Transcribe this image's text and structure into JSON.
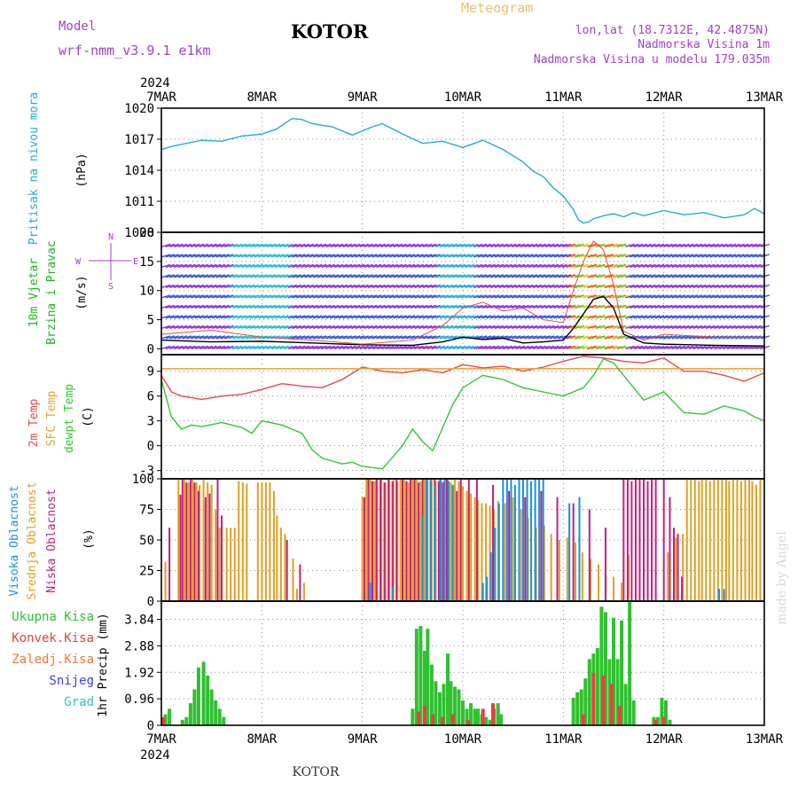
{
  "header": {
    "model_label": "Model",
    "model_name": "wrf-nmm_v3.9.1 e1km",
    "station": "KOTOR",
    "meteogram_label": "Meteogram",
    "lonlat": "lon,lat (18.7312E, 42.4875N)",
    "altitude": "Nadmorska Visina 1m",
    "model_altitude": "Nadmorska Visina u modelu 179.035m",
    "watermark": "made by Angel",
    "year_top": "2024",
    "year_bottom": "2024",
    "footer_station": "KOTOR"
  },
  "colors": {
    "pressure": "#22a8e6",
    "model": "#a040d0",
    "wind_label": "#22b022",
    "temp": "#e84848",
    "sfc": "#e8a030",
    "dewpt": "#30c830",
    "cloud_high": "#1890e0",
    "cloud_mid": "#e0a020",
    "cloud_low": "#c02080",
    "precip_total": "#30c030",
    "precip_conv": "#e84040",
    "precip_frozen": "#f07830",
    "precip_snow": "#4040e0",
    "precip_hail": "#30c0c0",
    "meteogram_title": "#e8c070",
    "header_right": "#a040d0"
  },
  "chart_data": [
    {
      "type": "line",
      "panel": "pressure",
      "ylabel_colored": "Pritisak na nivou mora",
      "unit": "(hPa)",
      "xlim_days": [
        "7MAR",
        "13MAR"
      ],
      "x_ticks": [
        "7MAR",
        "8MAR",
        "9MAR",
        "10MAR",
        "11MAR",
        "12MAR",
        "13MAR"
      ],
      "y_ticks": [
        "1020",
        "1017",
        "1014",
        "1011",
        "1008"
      ],
      "ylim": [
        1008,
        1020
      ],
      "grid": true,
      "series": [
        {
          "color": "pressure",
          "x": [
            0.0,
            0.1,
            0.2,
            0.4,
            0.6,
            0.8,
            1.0,
            1.15,
            1.3,
            1.4,
            1.5,
            1.7,
            1.9,
            2.1,
            2.2,
            2.4,
            2.6,
            2.8,
            3.0,
            3.2,
            3.4,
            3.6,
            3.7,
            3.8,
            3.9,
            4.0,
            4.1,
            4.15,
            4.2,
            4.25,
            4.3,
            4.4,
            4.5,
            4.6,
            4.7,
            4.8,
            5.0,
            5.2,
            5.4,
            5.6,
            5.8,
            5.9,
            6.0
          ],
          "y": [
            1016.0,
            1016.3,
            1016.5,
            1016.9,
            1016.8,
            1017.3,
            1017.5,
            1018.0,
            1019.0,
            1018.9,
            1018.5,
            1018.2,
            1017.4,
            1018.2,
            1018.5,
            1017.5,
            1016.6,
            1016.8,
            1016.2,
            1016.9,
            1016.0,
            1014.8,
            1013.9,
            1013.4,
            1012.3,
            1011.5,
            1010.2,
            1009.2,
            1008.9,
            1009.0,
            1009.3,
            1009.6,
            1009.8,
            1009.5,
            1009.9,
            1009.6,
            1010.1,
            1009.7,
            1009.9,
            1009.4,
            1009.7,
            1010.3,
            1009.8
          ]
        }
      ]
    },
    {
      "type": "line",
      "panel": "wind",
      "ylabel_colored": [
        "10m Vjetar",
        "Brzina i Pravac"
      ],
      "unit": "(m/s)",
      "compass_labels": [
        "N",
        "W",
        "E",
        "S"
      ],
      "y_ticks": [
        "20",
        "15",
        "10",
        "5",
        "0"
      ],
      "ylim": [
        -1,
        20
      ],
      "series": [
        {
          "name": "wind speed",
          "color": "#000000",
          "x": [
            0.0,
            0.5,
            1.0,
            1.5,
            2.0,
            2.5,
            2.8,
            3.0,
            3.2,
            3.4,
            3.6,
            3.8,
            4.0,
            4.1,
            4.2,
            4.3,
            4.4,
            4.5,
            4.6,
            4.8,
            5.0,
            5.5,
            6.0
          ],
          "y": [
            1.5,
            1.2,
            1.3,
            1.0,
            0.7,
            0.6,
            1.2,
            2.0,
            1.6,
            1.8,
            1.0,
            1.2,
            1.5,
            3.5,
            6.0,
            8.5,
            9.0,
            7.0,
            2.5,
            1.0,
            0.8,
            0.6,
            0.5
          ]
        },
        {
          "name": "wind gust",
          "color": "#e84848",
          "x": [
            0.0,
            0.5,
            1.0,
            1.5,
            2.0,
            2.5,
            2.8,
            3.0,
            3.2,
            3.4,
            3.6,
            3.8,
            4.0,
            4.1,
            4.2,
            4.3,
            4.4,
            4.5,
            4.6,
            4.8,
            5.0,
            5.5,
            6.0
          ],
          "y": [
            2.5,
            3.2,
            2.0,
            1.5,
            0.8,
            1.5,
            4.0,
            7.0,
            8.0,
            6.5,
            7.0,
            5.0,
            4.5,
            10.0,
            15.0,
            18.5,
            17.0,
            11.0,
            3.0,
            1.5,
            2.5,
            2.0,
            2.0
          ]
        }
      ]
    },
    {
      "type": "line",
      "panel": "temperature",
      "ylabel_colored": [
        "2m Temp",
        "SFC Temp",
        "dewpt Temp"
      ],
      "unit": "(C)",
      "y_ticks": [
        "9",
        "6",
        "3",
        "0",
        "-3"
      ],
      "ylim": [
        -4,
        11
      ],
      "series": [
        {
          "name": "2m Temp",
          "color": "temp",
          "x": [
            0.0,
            0.1,
            0.2,
            0.4,
            0.6,
            0.8,
            1.0,
            1.2,
            1.4,
            1.6,
            1.8,
            2.0,
            2.2,
            2.4,
            2.6,
            2.8,
            3.0,
            3.2,
            3.4,
            3.6,
            3.8,
            4.0,
            4.2,
            4.4,
            4.6,
            4.8,
            5.0,
            5.2,
            5.4,
            5.6,
            5.8,
            6.0
          ],
          "y": [
            8.5,
            6.5,
            6.0,
            5.6,
            6.0,
            6.2,
            6.8,
            7.5,
            7.2,
            7.0,
            8.0,
            9.5,
            9.0,
            8.8,
            9.2,
            8.8,
            9.8,
            9.4,
            9.6,
            9.0,
            9.5,
            10.2,
            10.8,
            10.6,
            10.2,
            10.0,
            10.6,
            9.0,
            9.0,
            8.5,
            7.8,
            8.8
          ]
        },
        {
          "name": "SFC Temp",
          "color": "sfc",
          "x": [
            0.0,
            6.0
          ],
          "y": [
            9.3,
            9.3
          ]
        },
        {
          "name": "dewpt Temp",
          "color": "dewpt",
          "x": [
            0.0,
            0.1,
            0.2,
            0.3,
            0.4,
            0.6,
            0.8,
            0.9,
            1.0,
            1.2,
            1.4,
            1.5,
            1.6,
            1.8,
            1.9,
            2.0,
            2.2,
            2.4,
            2.5,
            2.6,
            2.7,
            2.9,
            3.0,
            3.2,
            3.4,
            3.6,
            3.8,
            4.0,
            4.2,
            4.3,
            4.4,
            4.5,
            4.6,
            4.8,
            5.0,
            5.2,
            5.4,
            5.6,
            5.8,
            5.9,
            6.0
          ],
          "y": [
            8.0,
            3.5,
            2.0,
            2.5,
            2.3,
            2.8,
            2.2,
            1.5,
            3.0,
            2.5,
            1.5,
            -0.5,
            -1.5,
            -2.2,
            -2.0,
            -2.5,
            -2.8,
            0.0,
            2.0,
            0.5,
            -0.6,
            5.0,
            7.0,
            8.5,
            8.0,
            7.0,
            6.5,
            6.0,
            7.0,
            8.5,
            10.5,
            10.0,
            8.5,
            5.5,
            6.5,
            4.0,
            3.8,
            4.8,
            4.2,
            3.5,
            3.0
          ]
        }
      ]
    },
    {
      "type": "bar",
      "panel": "clouds",
      "ylabel_colored": [
        "Visoka Oblacnost",
        "Srednja Oblacnost",
        "Niska Oblacnost"
      ],
      "unit": "(%)",
      "y_ticks": [
        "100",
        "75",
        "50",
        "25",
        "0"
      ],
      "ylim": [
        0,
        100
      ],
      "series": [
        {
          "name": "Srednja Oblacnost",
          "color": "cloud_mid",
          "x": [
            0.04,
            0.17,
            0.23,
            0.27,
            0.31,
            0.35,
            0.38,
            0.42,
            0.46,
            0.5,
            0.54,
            0.58,
            0.65,
            0.69,
            0.73,
            0.77,
            0.81,
            0.85,
            0.96,
            1.0,
            1.04,
            1.08,
            1.12,
            1.15,
            1.19,
            1.23,
            1.31,
            1.35,
            1.42,
            2.0,
            2.04,
            2.08,
            2.12,
            2.15,
            2.19,
            2.23,
            2.27,
            2.31,
            2.35,
            2.38,
            2.42,
            2.46,
            2.5,
            2.54,
            2.58,
            2.62,
            2.65,
            2.69,
            2.73,
            2.77,
            2.81,
            2.85,
            2.88,
            2.92,
            2.96,
            3.0,
            3.04,
            3.08,
            3.12,
            3.15,
            3.19,
            3.23,
            3.27,
            3.31,
            3.35,
            3.42,
            3.5,
            3.58,
            3.65,
            3.73,
            3.81,
            3.88,
            3.96,
            4.04,
            4.12,
            4.19,
            4.27,
            4.35,
            4.42,
            4.5,
            4.58,
            4.65,
            5.04,
            5.12,
            5.19,
            5.23,
            5.27,
            5.31,
            5.35,
            5.38,
            5.42,
            5.46,
            5.5,
            5.54,
            5.58,
            5.62,
            5.65,
            5.69,
            5.73,
            5.77,
            5.81,
            5.85,
            5.88,
            5.92,
            5.96
          ],
          "y": [
            32,
            100,
            100,
            97,
            100,
            97,
            95,
            100,
            97,
            95,
            75,
            60,
            60,
            60,
            60,
            98,
            97,
            96,
            97,
            97,
            97,
            97,
            90,
            70,
            60,
            55,
            35,
            10,
            15,
            85,
            100,
            100,
            98,
            100,
            100,
            97,
            99,
            100,
            98,
            100,
            100,
            97,
            100,
            100,
            98,
            100,
            99,
            100,
            98,
            100,
            98,
            100,
            97,
            100,
            98,
            94,
            90,
            88,
            85,
            83,
            80,
            80,
            78,
            75,
            82,
            80,
            85,
            75,
            68,
            60,
            62,
            55,
            50,
            52,
            48,
            40,
            35,
            30,
            22,
            20,
            15,
            38,
            40,
            52,
            55,
            100,
            100,
            100,
            98,
            100,
            100,
            98,
            100,
            100,
            100,
            100,
            98,
            100,
            100,
            98,
            100,
            100,
            98,
            95,
            100
          ]
        },
        {
          "name": "Niska Oblacnost",
          "color": "cloud_low",
          "x": [
            0.08,
            0.19,
            0.21,
            0.25,
            0.29,
            0.33,
            0.37,
            0.44,
            0.48,
            0.56,
            0.6,
            1.25,
            1.38,
            2.02,
            2.06,
            2.1,
            2.14,
            2.18,
            2.22,
            2.26,
            2.3,
            2.34,
            2.4,
            2.44,
            2.48,
            2.52,
            2.56,
            2.6,
            2.64,
            2.68,
            2.72,
            2.76,
            2.8,
            2.84,
            2.9,
            2.94,
            2.98,
            3.06,
            3.14,
            3.3,
            3.46,
            3.62,
            3.78,
            3.94,
            4.1,
            4.26,
            4.42,
            4.6,
            4.64,
            4.68,
            4.72,
            4.76,
            4.8,
            4.84,
            4.88,
            4.92,
            5.0,
            5.06,
            5.1,
            5.14,
            5.18
          ],
          "y": [
            60,
            87,
            100,
            97,
            100,
            97,
            90,
            85,
            88,
            100,
            70,
            50,
            30,
            85,
            100,
            98,
            100,
            100,
            97,
            100,
            98,
            100,
            100,
            98,
            100,
            100,
            97,
            100,
            100,
            98,
            100,
            98,
            97,
            100,
            95,
            90,
            100,
            100,
            100,
            95,
            90,
            85,
            90,
            85,
            80,
            75,
            60,
            100,
            100,
            98,
            100,
            100,
            100,
            98,
            100,
            100,
            100,
            85,
            60,
            55,
            20
          ]
        },
        {
          "name": "Visoka Oblacnost",
          "color": "cloud_high",
          "x": [
            2.08,
            2.3,
            2.6,
            2.64,
            2.68,
            2.72,
            2.78,
            2.82,
            2.86,
            2.9,
            3.2,
            3.24,
            3.28,
            3.32,
            3.36,
            3.4,
            3.44,
            3.48,
            3.52,
            3.56,
            3.6,
            3.64,
            3.68,
            3.72,
            3.76,
            3.8,
            4.06,
            4.16,
            5.55,
            5.6
          ],
          "y": [
            15,
            12,
            70,
            100,
            100,
            95,
            100,
            100,
            98,
            95,
            15,
            20,
            40,
            60,
            80,
            100,
            100,
            100,
            95,
            100,
            100,
            100,
            98,
            100,
            100,
            100,
            80,
            85,
            10,
            10
          ]
        }
      ]
    },
    {
      "type": "bar",
      "panel": "precipitation",
      "legend": [
        "Ukupna Kisa",
        "Konvek.Kisa",
        "Zaledj.Kisa",
        "Snijeg",
        "Grad"
      ],
      "unit": "1hr Precip (mm)",
      "y_ticks": [
        "3.84",
        "2.88",
        "1.92",
        "0.96",
        "0"
      ],
      "ylim": [
        0,
        4.5
      ],
      "series": [
        {
          "name": "Ukupna Kisa",
          "color": "precip_total",
          "x": [
            0.04,
            0.08,
            0.21,
            0.25,
            0.29,
            0.33,
            0.37,
            0.42,
            0.46,
            0.5,
            0.54,
            0.58,
            0.62,
            2.5,
            2.54,
            2.58,
            2.62,
            2.65,
            2.69,
            2.73,
            2.77,
            2.81,
            2.85,
            2.88,
            2.92,
            2.96,
            3.0,
            3.04,
            3.08,
            3.12,
            3.15,
            3.19,
            3.23,
            3.27,
            3.31,
            3.35,
            3.38,
            4.1,
            4.14,
            4.18,
            4.22,
            4.26,
            4.3,
            4.34,
            4.38,
            4.42,
            4.46,
            4.5,
            4.54,
            4.58,
            4.62,
            4.66,
            4.7,
            4.9,
            4.94,
            4.98,
            5.02,
            5.06
          ],
          "y": [
            0.4,
            0.6,
            0.2,
            0.3,
            0.8,
            1.3,
            2.1,
            2.3,
            1.8,
            1.3,
            0.9,
            0.6,
            0.3,
            0.6,
            3.5,
            3.6,
            2.7,
            3.5,
            2.2,
            1.6,
            1.2,
            1.5,
            2.6,
            1.6,
            1.4,
            1.3,
            0.9,
            0.6,
            0.8,
            0.6,
            0.6,
            0.4,
            0.3,
            0.2,
            0.6,
            0.8,
            0.4,
            1.0,
            1.2,
            1.3,
            1.7,
            2.4,
            2.6,
            2.8,
            4.3,
            4.1,
            2.4,
            3.9,
            2.4,
            3.8,
            1.5,
            4.5,
            0.9,
            0.3,
            0.3,
            1.0,
            0.9,
            0.2
          ]
        },
        {
          "name": "Konvek.Kisa",
          "color": "precip_conv",
          "x": [
            0.02,
            2.56,
            2.62,
            2.7,
            2.8,
            2.9,
            3.05,
            3.2,
            3.3,
            4.2,
            4.3,
            4.4,
            4.48,
            4.56,
            4.92,
            5.0
          ],
          "y": [
            0.3,
            0.5,
            0.7,
            0.4,
            0.3,
            0.4,
            0.2,
            0.6,
            0.8,
            0.4,
            1.9,
            1.8,
            1.5,
            0.7,
            0.2,
            0.3
          ]
        }
      ]
    }
  ]
}
